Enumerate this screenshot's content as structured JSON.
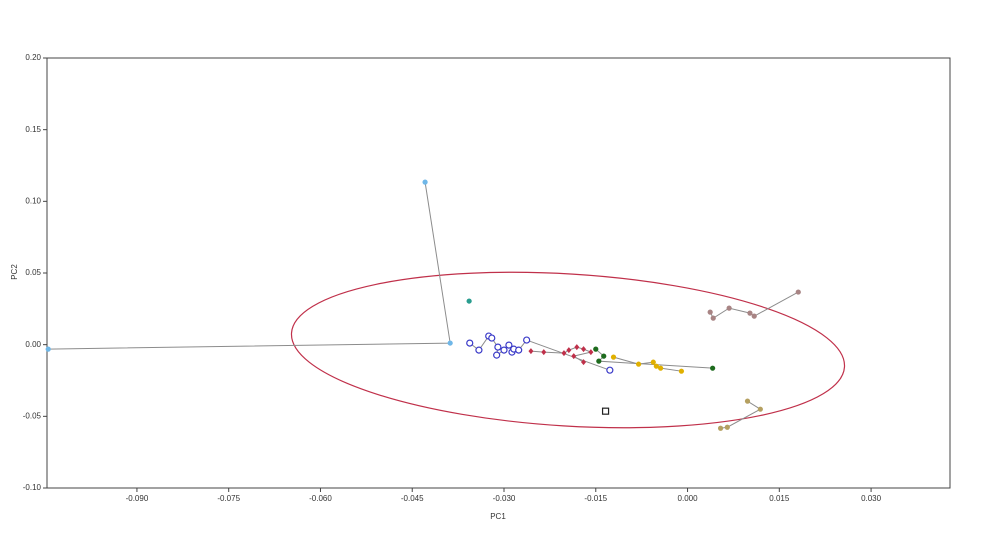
{
  "chart_data": {
    "type": "scatter",
    "x_label": "PC1",
    "y_label": "PC2",
    "xlim": [
      -0.1047,
      0.0429
    ],
    "ylim": [
      -0.1,
      0.2
    ],
    "xticks": [
      {
        "value": -0.09,
        "label": "-0.090"
      },
      -0.075,
      {
        "value": -0.06,
        "label": "-0.060"
      },
      -0.045,
      {
        "value": -0.03,
        "label": "-0.030"
      },
      -0.015,
      {
        "value": 0,
        "label": "0.000"
      },
      0.015,
      {
        "value": 0.03,
        "label": "0.030"
      }
    ],
    "yticks": [
      {
        "value": 0.2,
        "label": "0.20"
      },
      0.15,
      {
        "value": 0.1,
        "label": "0.10"
      },
      0.05,
      {
        "value": 0,
        "label": "0.00"
      },
      -0.05,
      {
        "value": -0.1,
        "label": "-0.10"
      }
    ],
    "line_color": "#8c8c8c",
    "series": [
      {
        "color": "#6fb7e8",
        "marker": "circle",
        "x": [
          -0.1045,
          -0.0388,
          -0.0429
        ],
        "y": [
          -0.0031,
          0.0011,
          0.1134
        ]
      },
      {
        "color": "#2a9d8f",
        "marker": "circle",
        "x": [
          -0.0357
        ],
        "y": [
          0.0304
        ]
      },
      {
        "color": "#3a3ac8",
        "marker": "open-circle",
        "x": [
          -0.0356,
          -0.0341,
          -0.0325,
          -0.032,
          -0.031,
          -0.0312,
          -0.03,
          -0.0292,
          -0.0287,
          -0.0284,
          -0.0276,
          -0.0263,
          -0.0127
        ],
        "y": [
          0.0011,
          -0.0038,
          0.006,
          0.0046,
          -0.0017,
          -0.0073,
          -0.0038,
          -0.0003,
          -0.0052,
          -0.0031,
          -0.0038,
          0.0032,
          -0.0178
        ]
      },
      {
        "color": "#c0304a",
        "marker": "diamond",
        "x": [
          -0.0256,
          -0.0235,
          -0.0202,
          -0.0194,
          -0.0181,
          -0.017,
          -0.0158,
          -0.0186,
          -0.017
        ],
        "y": [
          -0.0045,
          -0.0052,
          -0.0059,
          -0.0038,
          -0.0017,
          -0.0031,
          -0.0052,
          -0.008,
          -0.0122
        ]
      },
      {
        "color": "#1e6b1e",
        "marker": "circle",
        "x": [
          -0.015,
          -0.0137,
          -0.0145,
          0.0041
        ],
        "y": [
          -0.0031,
          -0.008,
          -0.0115,
          -0.0164
        ]
      },
      {
        "color": "#e0b000",
        "marker": "circle",
        "x": [
          -0.0121,
          -0.008,
          -0.0056,
          -0.0051,
          -0.0044,
          -0.001
        ],
        "y": [
          -0.0087,
          -0.0136,
          -0.0122,
          -0.015,
          -0.0164,
          -0.0185
        ]
      },
      {
        "color": "#b5a060",
        "marker": "circle",
        "x": [
          0.0098,
          0.0119,
          0.0065,
          0.0054
        ],
        "y": [
          -0.0394,
          -0.045,
          -0.0576,
          -0.0583
        ]
      },
      {
        "color": "#a88484",
        "marker": "circle",
        "x": [
          0.0037,
          0.0042,
          0.0068,
          0.0102,
          0.0109,
          0.0181
        ],
        "y": [
          0.0227,
          0.0185,
          0.0255,
          0.022,
          0.0199,
          0.0367
        ]
      },
      {
        "color": "#222222",
        "marker": "square",
        "x": [
          -0.0134
        ],
        "y": [
          -0.0464
        ]
      }
    ]
  }
}
